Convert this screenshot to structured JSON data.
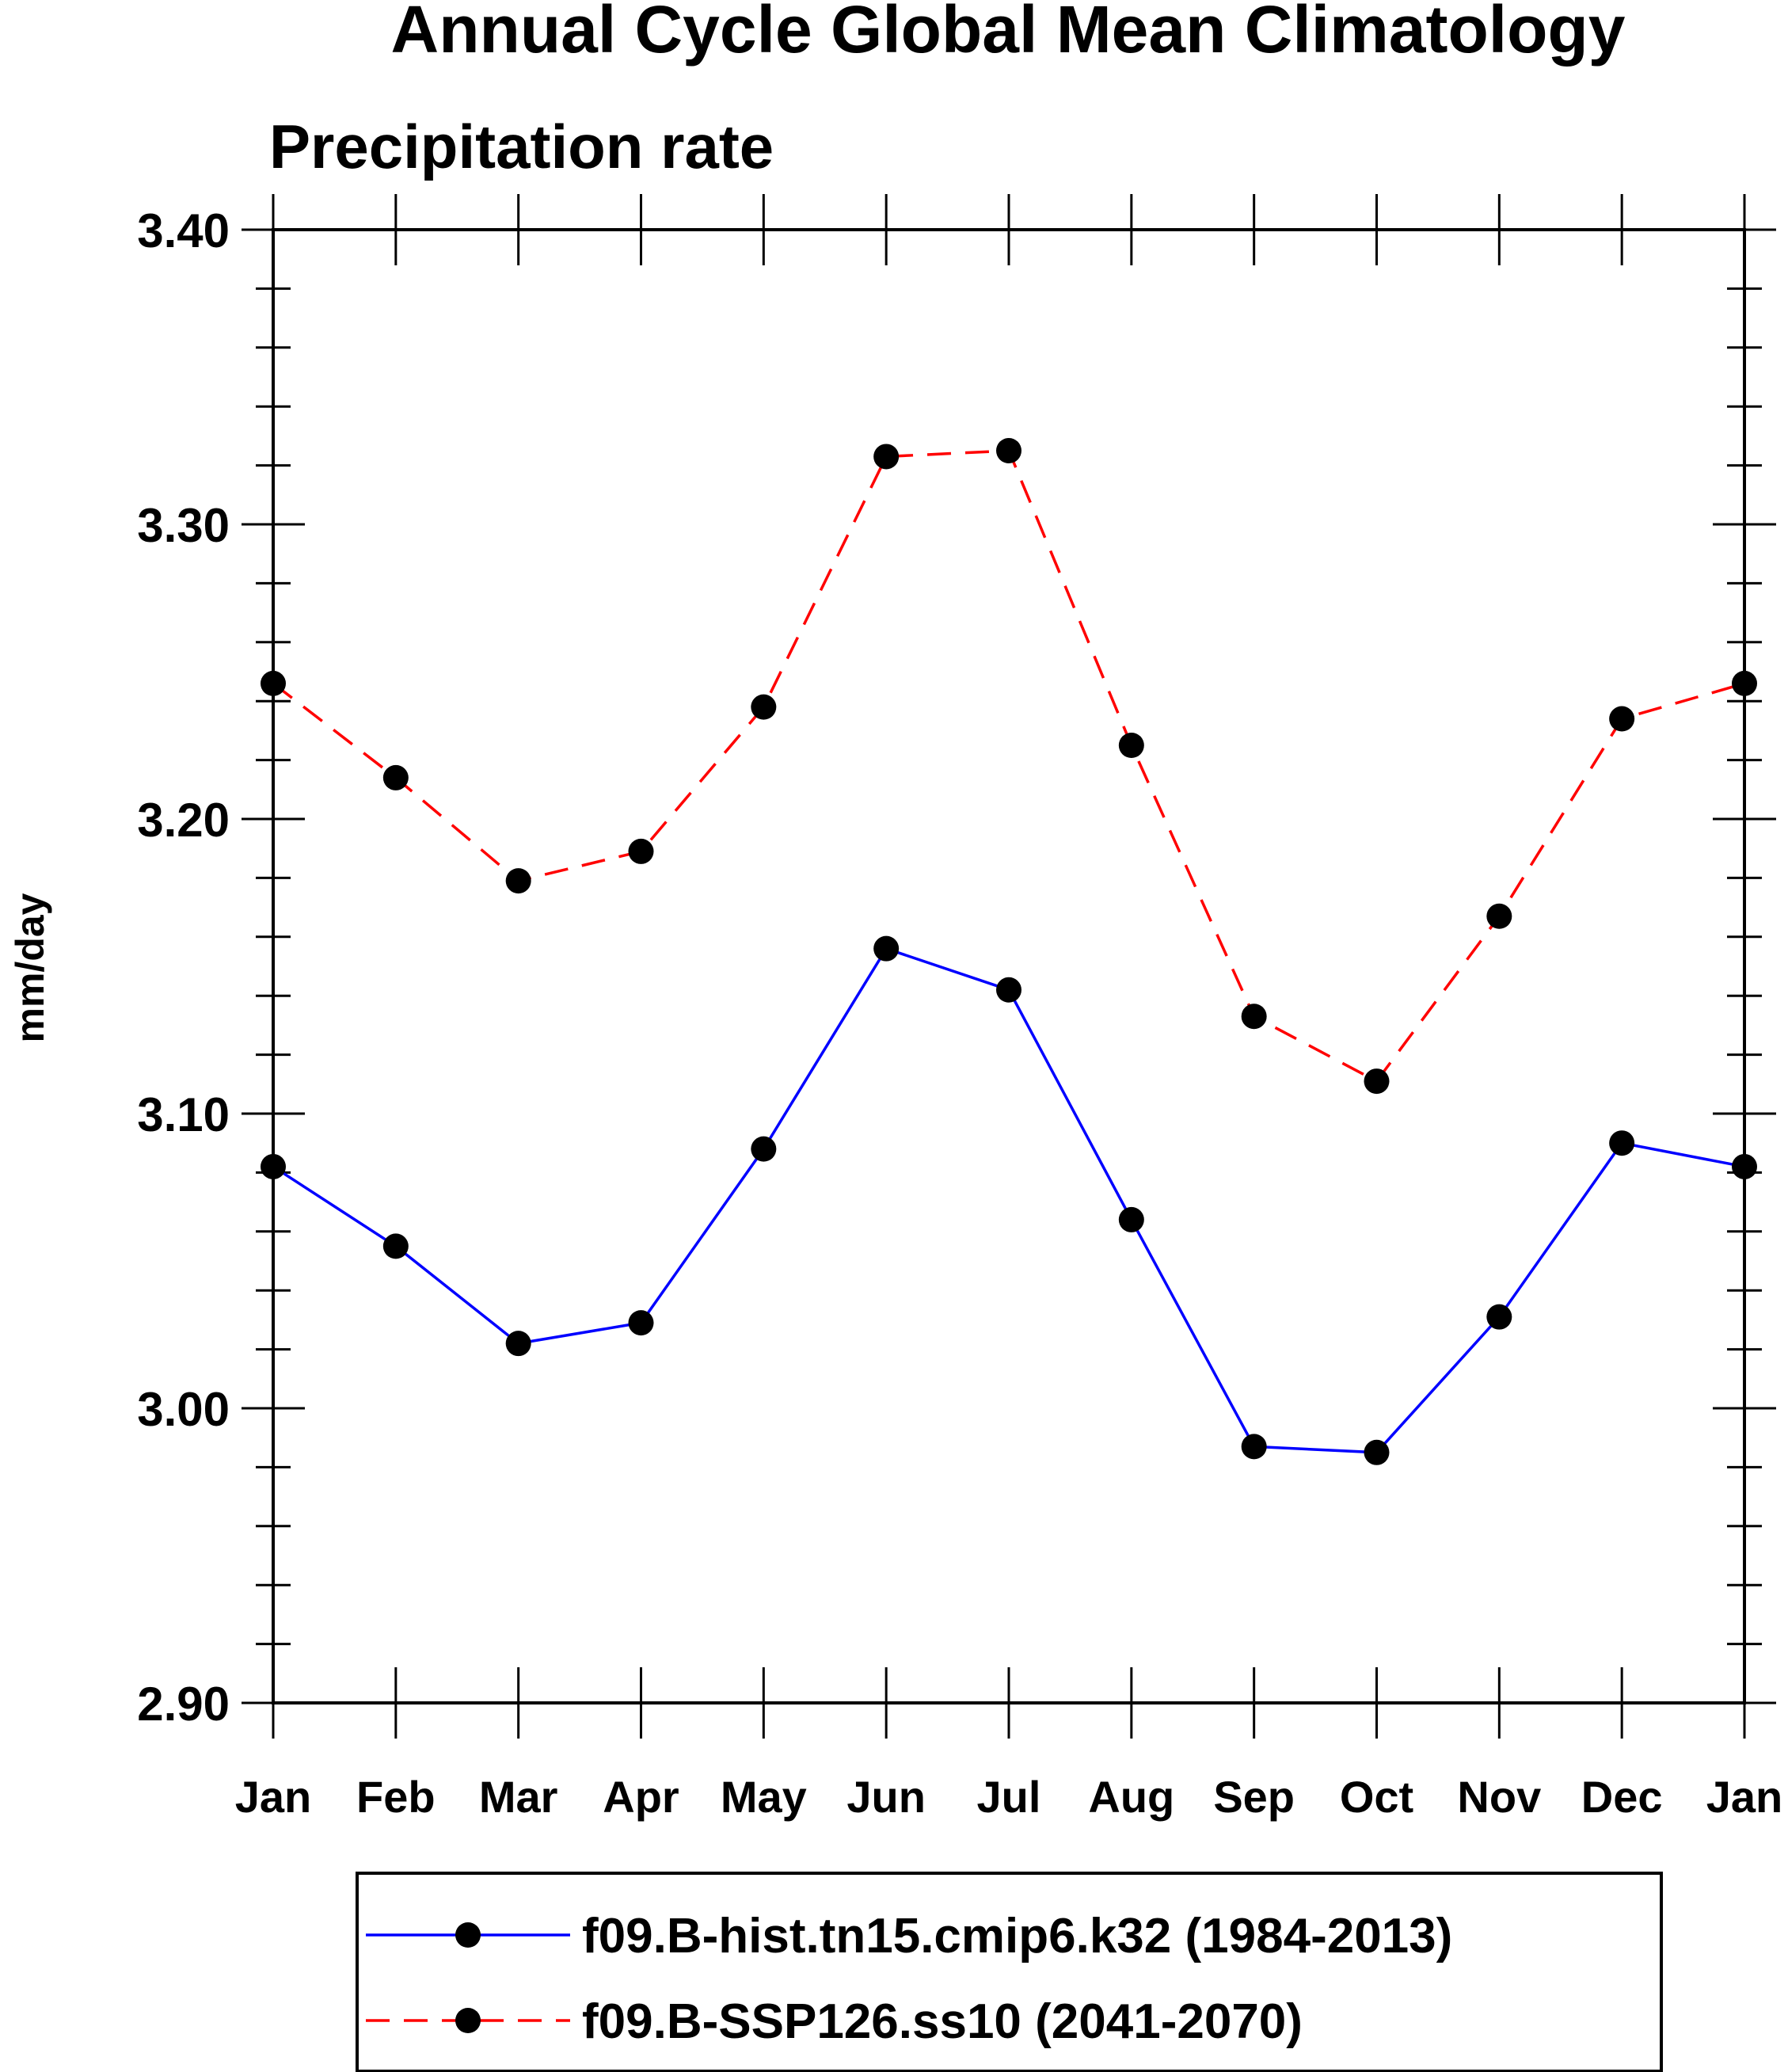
{
  "chart_data": {
    "type": "line",
    "title": "Annual Cycle Global Mean Climatology",
    "subtitle": "Precipitation rate",
    "ylabel": "mm/day",
    "xlabel": "",
    "categories": [
      "Jan",
      "Feb",
      "Mar",
      "Apr",
      "May",
      "Jun",
      "Jul",
      "Aug",
      "Sep",
      "Oct",
      "Nov",
      "Dec",
      "Jan"
    ],
    "ylim": [
      2.9,
      3.4
    ],
    "yticks": [
      "2.90",
      "3.00",
      "3.10",
      "3.20",
      "3.30",
      "3.40"
    ],
    "legend_position": "bottom",
    "series": [
      {
        "name": "f09.B-hist.tn15.cmip6.k32 (1984-2013)",
        "color": "#0000ff",
        "dash": "solid",
        "marker": "circle",
        "values": [
          3.082,
          3.055,
          3.022,
          3.029,
          3.088,
          3.156,
          3.142,
          3.064,
          2.987,
          2.985,
          3.031,
          3.09,
          3.082
        ]
      },
      {
        "name": "f09.B-SSP126.ss10 (2041-2070)",
        "color": "#ff0000",
        "dash": "dashed",
        "marker": "circle",
        "values": [
          3.246,
          3.214,
          3.179,
          3.189,
          3.238,
          3.323,
          3.325,
          3.225,
          3.133,
          3.111,
          3.167,
          3.234,
          3.246
        ]
      }
    ]
  }
}
